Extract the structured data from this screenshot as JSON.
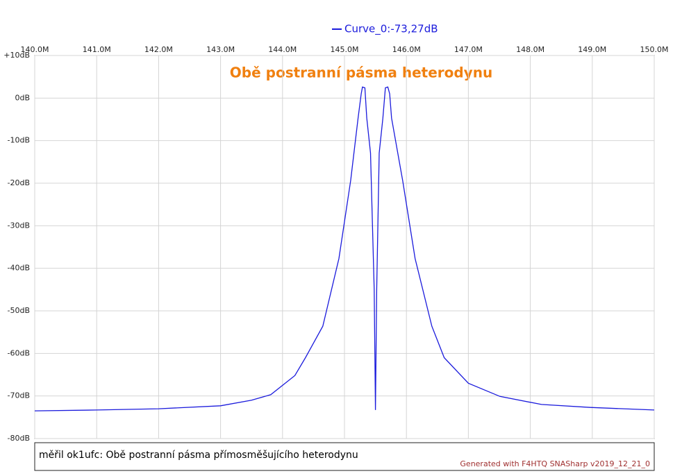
{
  "chart_data": {
    "type": "line",
    "legend": "Curve_0:-73,27dB",
    "title": "Obě postranní pásma heterodynu",
    "title_color": "#f08010",
    "caption": "měřil ok1ufc: Obě postranní pásma přímosměšujícího heterodynu",
    "credit": "Generated with F4HTQ SNASharp v2019_12_21_0",
    "grid": true,
    "xlim": [
      140,
      150
    ],
    "ylim": [
      -80,
      10
    ],
    "xticks": [
      {
        "value": 140,
        "label": "140.0M"
      },
      {
        "value": 141,
        "label": "141.0M"
      },
      {
        "value": 142,
        "label": "142.0M"
      },
      {
        "value": 143,
        "label": "143.0M"
      },
      {
        "value": 144,
        "label": "144.0M"
      },
      {
        "value": 145,
        "label": "145.0M"
      },
      {
        "value": 146,
        "label": "146.0M"
      },
      {
        "value": 147,
        "label": "147.0M"
      },
      {
        "value": 148,
        "label": "148.0M"
      },
      {
        "value": 149,
        "label": "149.0M"
      },
      {
        "value": 150,
        "label": "150.0M"
      }
    ],
    "yticks": [
      {
        "value": 10,
        "label": "+10dB"
      },
      {
        "value": 0,
        "label": "0dB"
      },
      {
        "value": -10,
        "label": "-10dB"
      },
      {
        "value": -20,
        "label": "-20dB"
      },
      {
        "value": -30,
        "label": "-30dB"
      },
      {
        "value": -40,
        "label": "-40dB"
      },
      {
        "value": -50,
        "label": "-50dB"
      },
      {
        "value": -60,
        "label": "-60dB"
      },
      {
        "value": -70,
        "label": "-70dB"
      },
      {
        "value": -80,
        "label": "-80dB"
      }
    ],
    "series": [
      {
        "name": "Curve_0",
        "color": "#1a1adc",
        "x": [
          140,
          141,
          142,
          143,
          143.5,
          143.81,
          144.2,
          144.37,
          144.65,
          144.91,
          145.1,
          145.22,
          145.27,
          145.29,
          145.33,
          145.36,
          145.42,
          145.48,
          145.5,
          145.52,
          145.56,
          145.62,
          145.66,
          145.7,
          145.73,
          145.76,
          145.94,
          146.14,
          146.41,
          146.61,
          147,
          147.51,
          148.18,
          148.97,
          150
        ],
        "values": [
          -73.5,
          -73.3,
          -73,
          -72.3,
          -71,
          -69.7,
          -65.2,
          -61,
          -53.6,
          -37.7,
          -19.4,
          -4.7,
          1,
          2.6,
          2.4,
          -4.7,
          -12.9,
          -45,
          -73.3,
          -45,
          -12.9,
          -4.7,
          2.4,
          2.6,
          1,
          -4.7,
          -19.4,
          -37.7,
          -53.6,
          -61,
          -67,
          -70.1,
          -72,
          -72.7,
          -73.3
        ]
      }
    ]
  }
}
